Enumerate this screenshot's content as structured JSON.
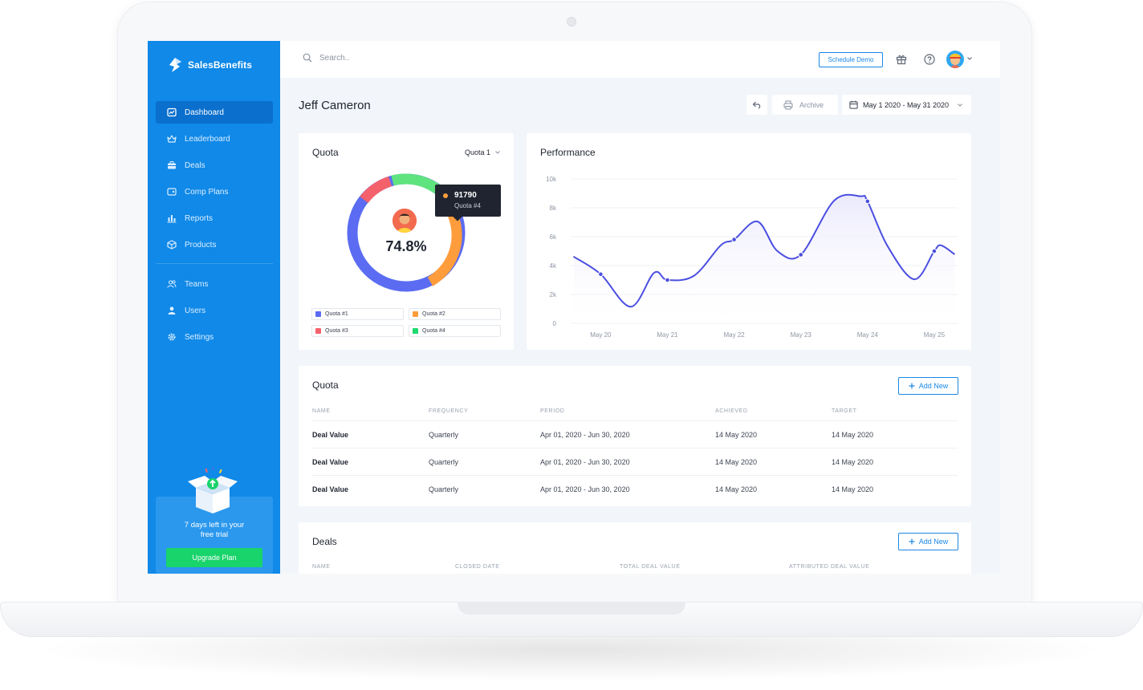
{
  "brand": {
    "name": "SalesBenefits"
  },
  "search": {
    "placeholder": "Search.."
  },
  "topbar": {
    "schedule_demo": "Schedule Demo"
  },
  "sidebar": {
    "items": [
      {
        "label": "Dashboard",
        "icon": "dashboard-icon",
        "active": true
      },
      {
        "label": "Leaderboard",
        "icon": "crown-icon"
      },
      {
        "label": "Deals",
        "icon": "briefcase-icon"
      },
      {
        "label": "Comp Plans",
        "icon": "wallet-icon"
      },
      {
        "label": "Reports",
        "icon": "bar-chart-icon"
      },
      {
        "label": "Products",
        "icon": "cube-icon"
      },
      {
        "label": "Teams",
        "icon": "team-icon"
      },
      {
        "label": "Users",
        "icon": "user-icon"
      },
      {
        "label": "Settings",
        "icon": "gear-icon"
      }
    ],
    "trial_text_line1": "7 days left in your",
    "trial_text_line2": "free trial",
    "upgrade_label": "Upgrade Plan"
  },
  "header": {
    "title": "Jeff Cameron",
    "archive_label": "Archive",
    "date_range": "May 1 2020 - May 31 2020"
  },
  "quota_card": {
    "title": "Quota",
    "select_value": "Quota 1",
    "percent": "74.8%",
    "tooltip_value": "91790",
    "tooltip_label": "Quota #4",
    "legend": [
      {
        "label": "Quota #1",
        "color": "#5b6cf2"
      },
      {
        "label": "Quota #2",
        "color": "#ff9d3c"
      },
      {
        "label": "Quota #3",
        "color": "#f4616b"
      },
      {
        "label": "Quota #4",
        "color": "#1ed96f"
      }
    ]
  },
  "chart_data": {
    "type": "area",
    "title": "Performance",
    "ylim": [
      0,
      10000
    ],
    "yticks": [
      "0",
      "2k",
      "4k",
      "6k",
      "8k",
      "10k"
    ],
    "xticks": [
      "May 20",
      "May 21",
      "May 22",
      "May 23",
      "May 24",
      "May 25"
    ],
    "grid": true,
    "x": [
      19.6,
      20,
      20.45,
      20.8,
      21,
      21.4,
      21.8,
      22,
      22.35,
      22.65,
      23,
      23.5,
      23.9,
      24,
      24.3,
      24.7,
      25,
      25.1,
      25.3
    ],
    "values": [
      4600,
      3400,
      1150,
      3500,
      3000,
      3300,
      5400,
      5800,
      7050,
      5000,
      4750,
      8500,
      8800,
      8450,
      5350,
      3050,
      5000,
      5400,
      4800
    ],
    "marker_x": [
      20,
      21,
      22,
      23,
      24,
      25
    ],
    "marker_values": [
      3400,
      3000,
      5800,
      4750,
      8450,
      5000
    ],
    "line_color": "#4b4fe0",
    "fill_color": "#ebeafc"
  },
  "quota_table": {
    "title": "Quota",
    "add_label": "Add New",
    "columns": [
      "NAME",
      "FREQUENCY",
      "PERIOD",
      "ACHIEVED",
      "TARGET"
    ],
    "rows": [
      [
        "Deal Value",
        "Quarterly",
        "Apr 01, 2020 - Jun 30, 2020",
        "14 May 2020",
        "14 May 2020"
      ],
      [
        "Deal Value",
        "Quarterly",
        "Apr 01, 2020 - Jun 30, 2020",
        "14 May 2020",
        "14 May 2020"
      ],
      [
        "Deal Value",
        "Quarterly",
        "Apr 01, 2020 - Jun 30, 2020",
        "14 May 2020",
        "14 May 2020"
      ]
    ]
  },
  "deals_table": {
    "title": "Deals",
    "add_label": "Add New",
    "columns": [
      "NAME",
      "CLOSED DATE",
      "TOTAL DEAL VALUE",
      "ATTRIBUTED DEAL VALUE"
    ]
  },
  "colors": {
    "sidebar": "#1089e8",
    "accent": "#1a87e6",
    "upgrade": "#19d36b",
    "background": "#f2f5f9"
  }
}
